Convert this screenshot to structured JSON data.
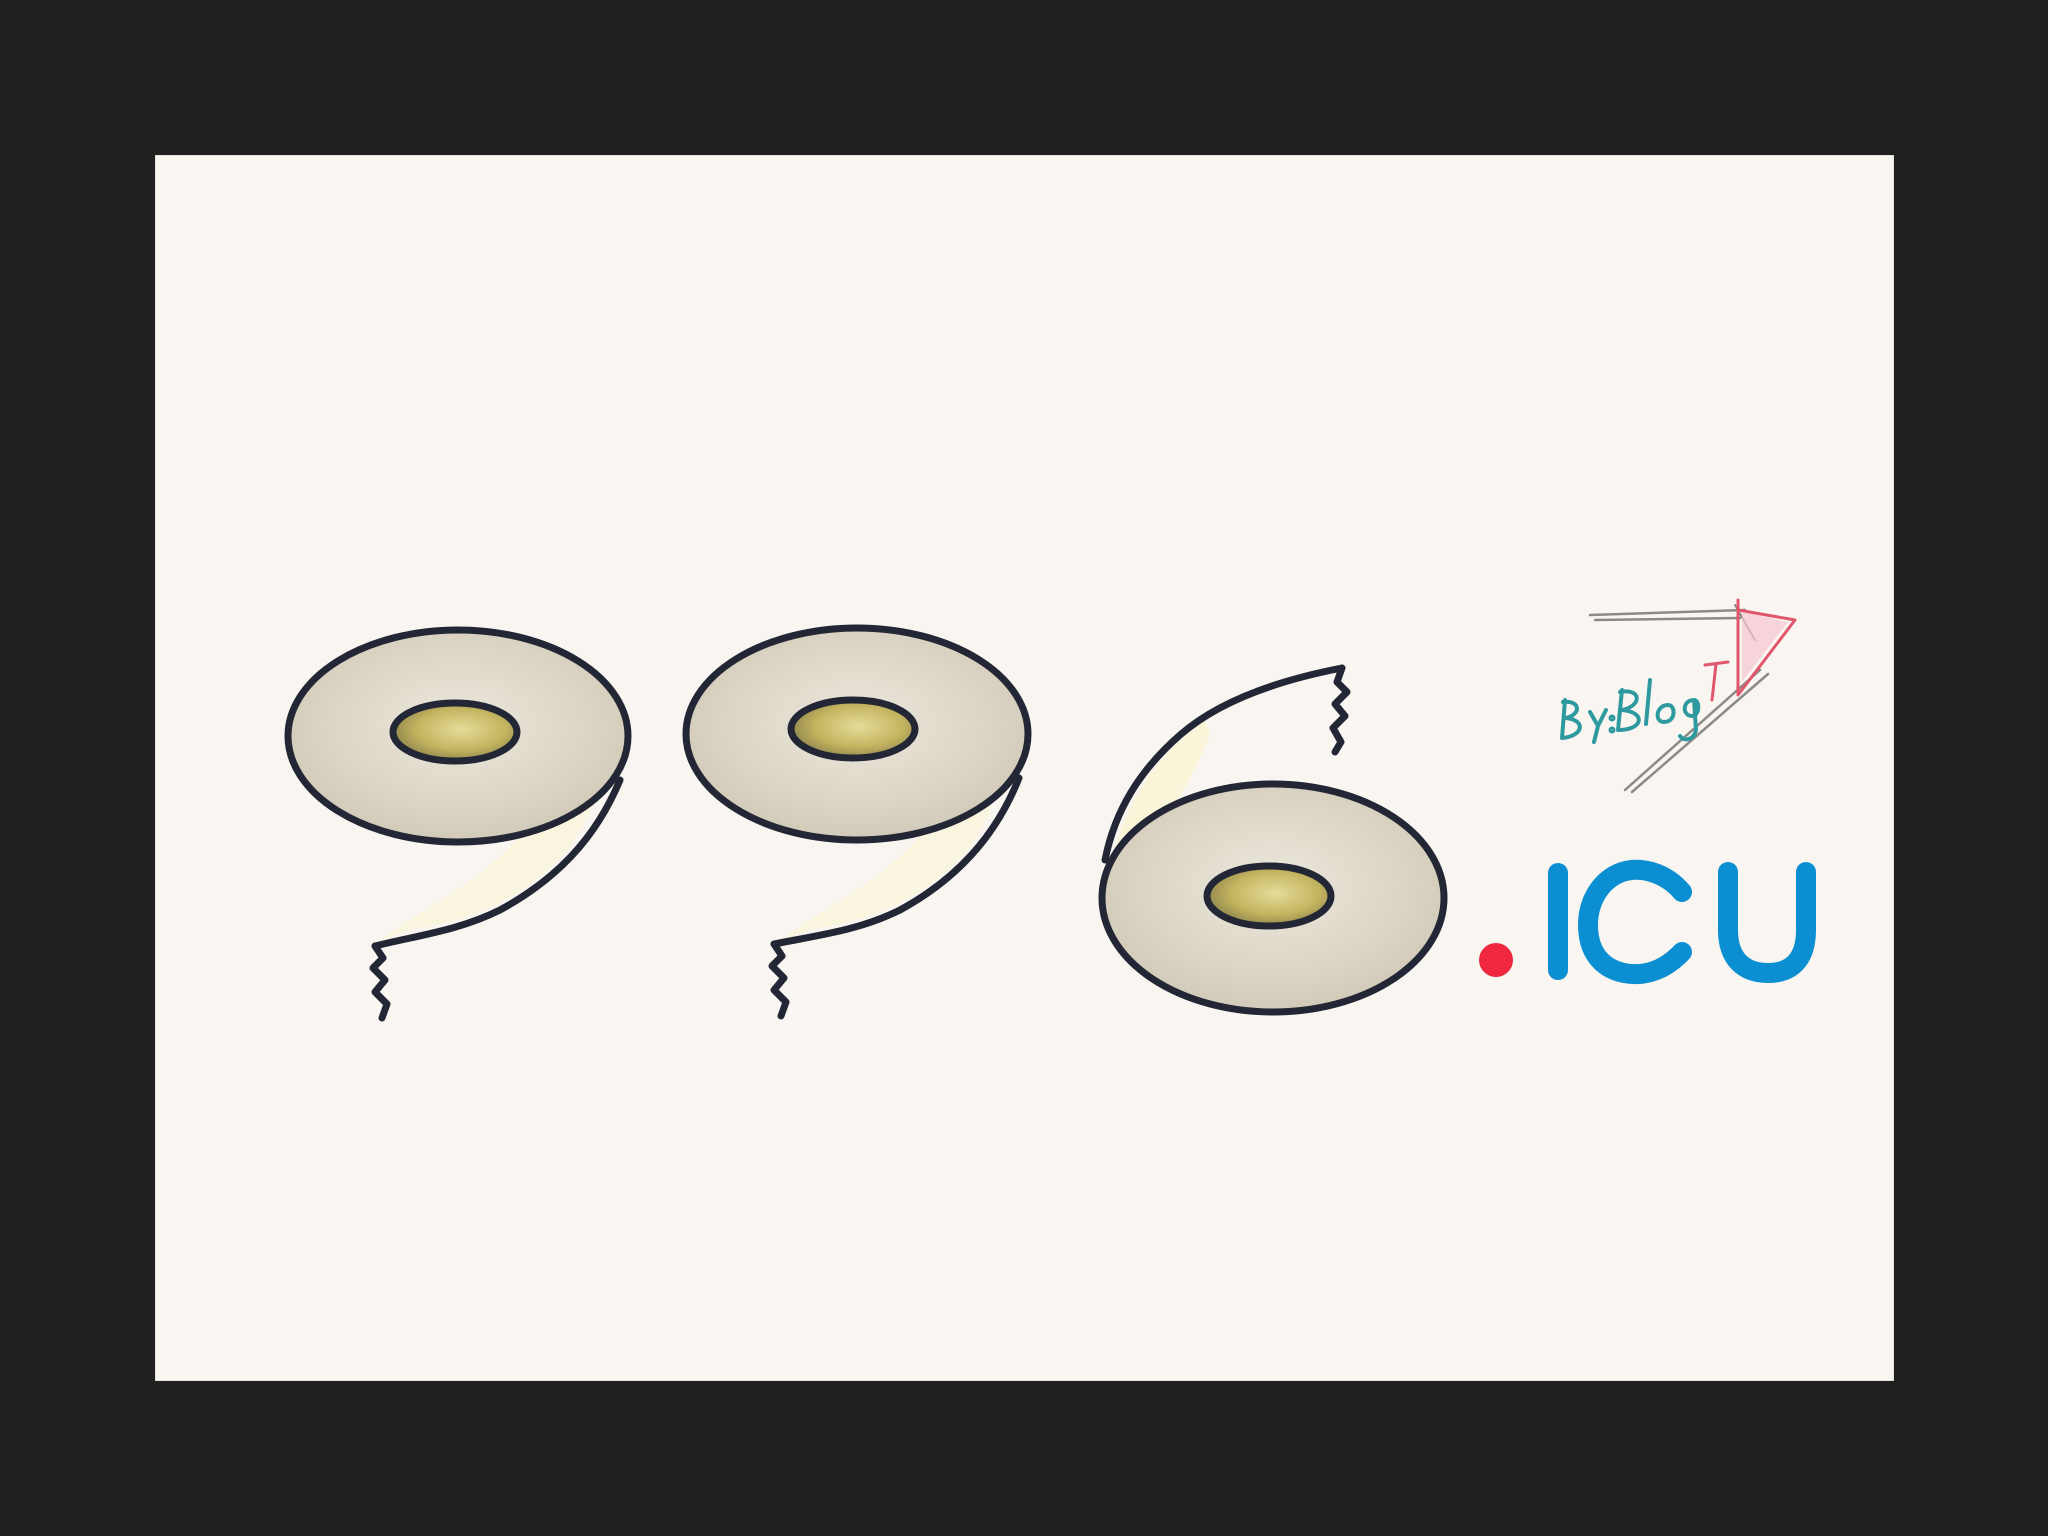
{
  "logo": {
    "digits": [
      "9",
      "9",
      "6"
    ],
    "suffix_dot": ".",
    "suffix_text": "ICU",
    "signature": "BY:BlogT",
    "colors": {
      "frame": "#202020",
      "canvas": "#f9f6f2",
      "outline": "#232634",
      "roll_face": "#dcd6c8",
      "core": "#c7b866",
      "dot": "#f0293e",
      "suffix": "#0b8fd2",
      "signature_teal": "#2e9aa0",
      "signature_red": "#e0566b",
      "signature_gray": "#8a8a8a"
    }
  }
}
